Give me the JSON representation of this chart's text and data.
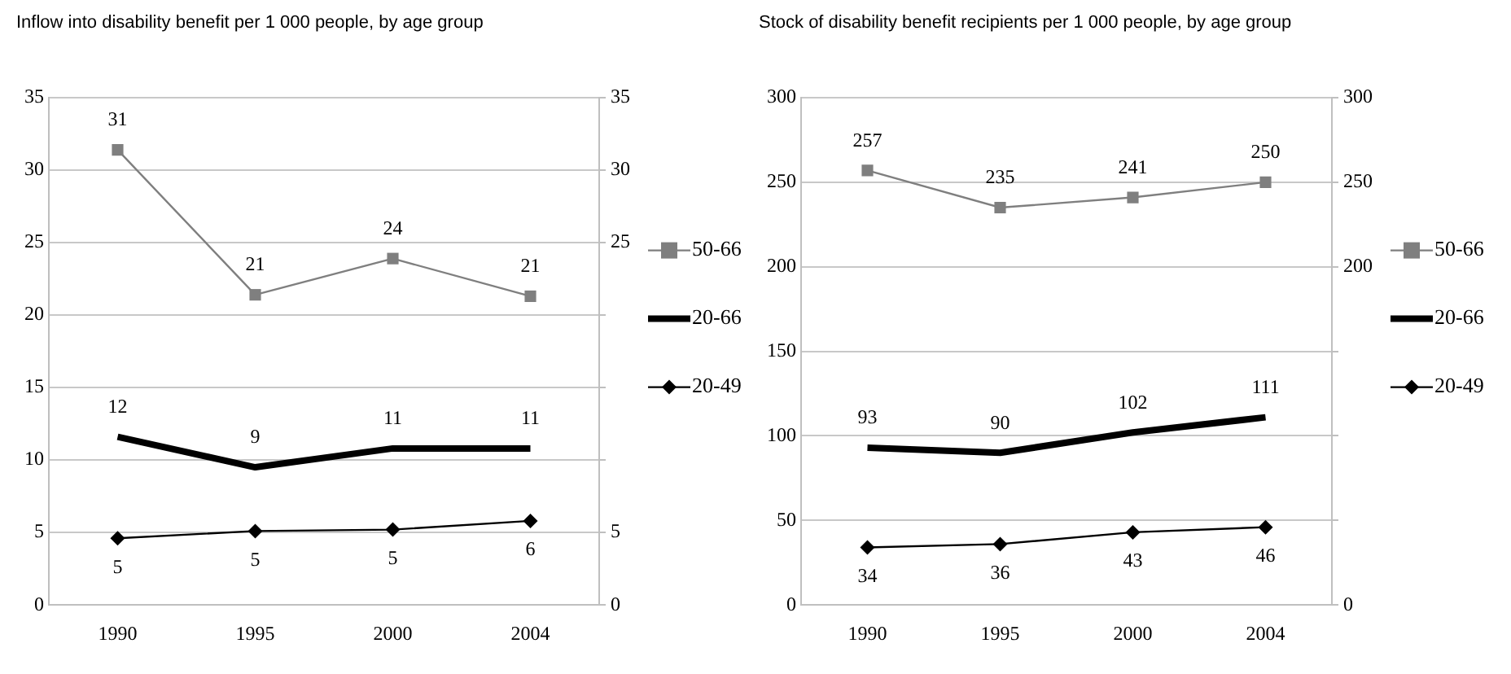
{
  "chart_data": [
    {
      "type": "line",
      "title": "Inflow into disability benefit per 1 000 people, by age group",
      "categories": [
        "1990",
        "1995",
        "2000",
        "2004"
      ],
      "series": [
        {
          "name": "50-66",
          "color": "#7f7f7f",
          "marker": "square",
          "values": [
            31.4,
            21.4,
            23.9,
            21.3
          ],
          "value_labels": [
            "31",
            "21",
            "24",
            "21"
          ]
        },
        {
          "name": "20-66",
          "color": "#000000",
          "marker": "none",
          "values": [
            11.6,
            9.5,
            10.8,
            10.8
          ],
          "value_labels": [
            "12",
            "9",
            "11",
            "11"
          ]
        },
        {
          "name": "20-49",
          "color": "#000000",
          "marker": "diamond",
          "values": [
            4.6,
            5.1,
            5.2,
            5.8
          ],
          "value_labels": [
            "5",
            "5",
            "5",
            "6"
          ]
        }
      ],
      "ylim": [
        0,
        35
      ],
      "yticks": [
        0,
        5,
        10,
        15,
        20,
        25,
        30,
        35
      ],
      "y2lim": [
        0,
        35
      ],
      "y2ticks": [
        0,
        5,
        {
          "value": 10,
          "label": null
        },
        {
          "value": 15,
          "label": null
        },
        {
          "value": 20,
          "label": null
        },
        25,
        30,
        35
      ],
      "grid": "y",
      "legend": "right"
    },
    {
      "type": "line",
      "title": "Stock of disability benefit recipients per 1 000 people, by age group",
      "categories": [
        "1990",
        "1995",
        "2000",
        "2004"
      ],
      "series": [
        {
          "name": "50-66",
          "color": "#7f7f7f",
          "marker": "square",
          "values": [
            257,
            235,
            241,
            250
          ]
        },
        {
          "name": "20-66",
          "color": "#000000",
          "marker": "none",
          "values": [
            93,
            90,
            102,
            111
          ]
        },
        {
          "name": "20-49",
          "color": "#000000",
          "marker": "diamond",
          "values": [
            34,
            36,
            43,
            46
          ]
        }
      ],
      "ylim": [
        0,
        300
      ],
      "yticks": [
        0,
        50,
        100,
        150,
        200,
        250,
        300
      ],
      "y2lim": [
        0,
        300
      ],
      "y2ticks": [
        0,
        {
          "value": 50,
          "label": null
        },
        {
          "value": 100,
          "label": null
        },
        {
          "value": 150,
          "label": null
        },
        200,
        250,
        300
      ],
      "grid": "y",
      "legend": "right",
      "data_labels": true
    }
  ]
}
